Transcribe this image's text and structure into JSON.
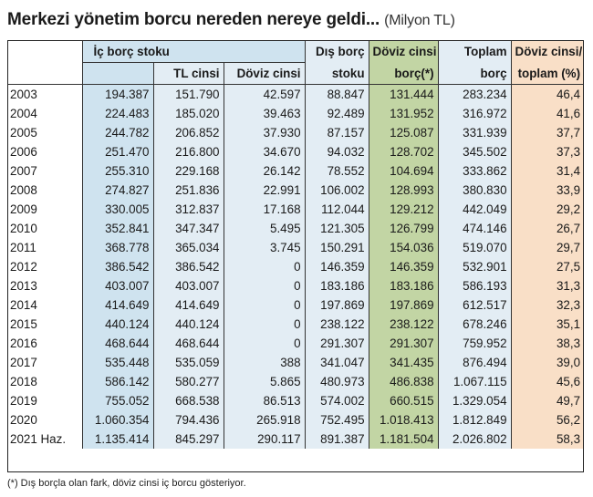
{
  "title": "Merkezi yönetim borcu nereden nereye geldi...",
  "unit": "(Milyon TL)",
  "headers": {
    "ic_borc_stoku": "İç borç stoku",
    "tl_cinsi": "TL cinsi",
    "doviz_cinsi": "Döviz cinsi",
    "dis_borc_1": "Dış borç",
    "dis_borc_2": "stoku",
    "doviz_borc_1": "Döviz cinsi",
    "doviz_borc_2": "borç(*)",
    "toplam_1": "Toplam",
    "toplam_2": "borç",
    "oran_1": "Döviz cinsi/",
    "oran_2": "toplam (%)"
  },
  "rows": [
    [
      "2003",
      "194.387",
      "151.790",
      "42.597",
      "88.847",
      "131.444",
      "283.234",
      "46,4"
    ],
    [
      "2004",
      "224.483",
      "185.020",
      "39.463",
      "92.489",
      "131.952",
      "316.972",
      "41,6"
    ],
    [
      "2005",
      "244.782",
      "206.852",
      "37.930",
      "87.157",
      "125.087",
      "331.939",
      "37,7"
    ],
    [
      "2006",
      "251.470",
      "216.800",
      "34.670",
      "94.032",
      "128.702",
      "345.502",
      "37,3"
    ],
    [
      "2007",
      "255.310",
      "229.168",
      "26.142",
      "78.552",
      "104.694",
      "333.862",
      "31,4"
    ],
    [
      "2008",
      "274.827",
      "251.836",
      "22.991",
      "106.002",
      "128.993",
      "380.830",
      "33,9"
    ],
    [
      "2009",
      "330.005",
      "312.837",
      "17.168",
      "112.044",
      "129.212",
      "442.049",
      "29,2"
    ],
    [
      "2010",
      "352.841",
      "347.347",
      "5.495",
      "121.305",
      "126.799",
      "474.146",
      "26,7"
    ],
    [
      "2011",
      "368.778",
      "365.034",
      "3.745",
      "150.291",
      "154.036",
      "519.070",
      "29,7"
    ],
    [
      "2012",
      "386.542",
      "386.542",
      "0",
      "146.359",
      "146.359",
      "532.901",
      "27,5"
    ],
    [
      "2013",
      "403.007",
      "403.007",
      "0",
      "183.186",
      "183.186",
      "586.193",
      "31,3"
    ],
    [
      "2014",
      "414.649",
      "414.649",
      "0",
      "197.869",
      "197.869",
      "612.517",
      "32,3"
    ],
    [
      "2015",
      "440.124",
      "440.124",
      "0",
      "238.122",
      "238.122",
      "678.246",
      "35,1"
    ],
    [
      "2016",
      "468.644",
      "468.644",
      "0",
      "291.307",
      "291.307",
      "759.952",
      "38,3"
    ],
    [
      "2017",
      "535.448",
      "535.059",
      "388",
      "341.047",
      "341.435",
      "876.494",
      "39,0"
    ],
    [
      "2018",
      "586.142",
      "580.277",
      "5.865",
      "480.973",
      "486.838",
      "1.067.115",
      "45,6"
    ],
    [
      "2019",
      "755.052",
      "668.538",
      "86.513",
      "574.002",
      "660.515",
      "1.329.054",
      "49,7"
    ],
    [
      "2020",
      "1.060.354",
      "794.436",
      "265.918",
      "752.495",
      "1.018.413",
      "1.812.849",
      "56,2"
    ],
    [
      "2021 Haz.",
      "1.135.414",
      "845.297",
      "290.117",
      "891.387",
      "1.181.504",
      "2.026.802",
      "58,3"
    ]
  ],
  "footnote": "(*) Dış borçla olan fark, döviz cinsi iç borcu gösteriyor.",
  "colors": {
    "ic_borc": "#cfe3ef",
    "light_blue": "#e3edf4",
    "doviz_borc": "#c2d5a4",
    "oran": "#f9dfc7"
  }
}
